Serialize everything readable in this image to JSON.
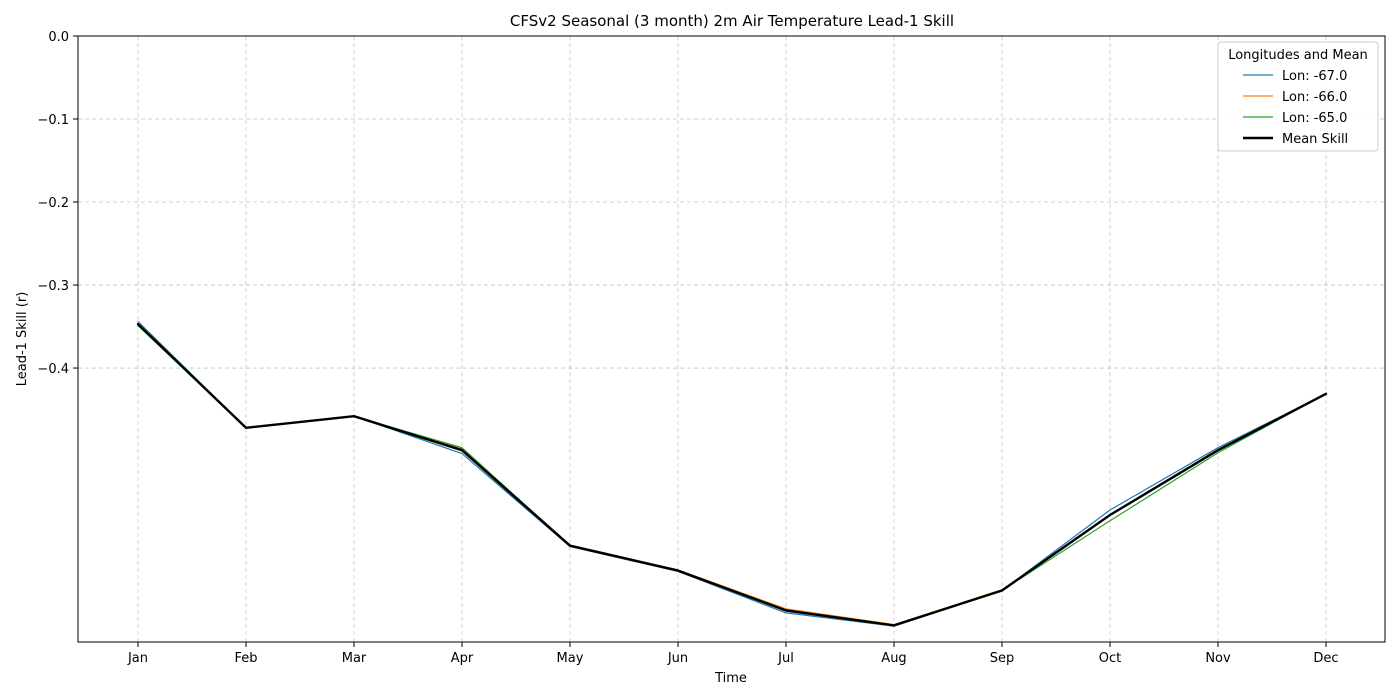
{
  "chart_data": {
    "type": "line",
    "title": "CFSv2 Seasonal (3 month) 2m Air Temperature Lead-1 Skill",
    "xlabel": "Time",
    "ylabel": "Lead-1 Skill (r)",
    "categories": [
      "Jan",
      "Feb",
      "Mar",
      "Apr",
      "May",
      "Jun",
      "Jul",
      "Aug",
      "Sep",
      "Oct",
      "Nov",
      "Dec"
    ],
    "ylim": [
      -0.73,
      0.0
    ],
    "yticks": [
      0.0,
      -0.1,
      -0.2,
      -0.3,
      -0.4
    ],
    "ytick_labels": [
      "0.0",
      "−0.1",
      "−0.2",
      "−0.3",
      "−0.4"
    ],
    "grid": true,
    "legend": {
      "title": "Longitudes and Mean",
      "placement": "top-right"
    },
    "series": [
      {
        "name": "Lon: -67.0",
        "color": "#1f77b4",
        "width": "thin",
        "values": [
          -0.344,
          -0.472,
          -0.458,
          -0.503,
          -0.615,
          -0.645,
          -0.695,
          -0.711,
          -0.668,
          -0.571,
          -0.496,
          -0.431
        ]
      },
      {
        "name": "Lon: -66.0",
        "color": "#ff7f0e",
        "width": "thin",
        "values": [
          -0.348,
          -0.472,
          -0.458,
          -0.497,
          -0.613,
          -0.643,
          -0.69,
          -0.709,
          -0.667,
          -0.577,
          -0.498,
          -0.431
        ]
      },
      {
        "name": "Lon: -65.0",
        "color": "#2ca02c",
        "width": "thin",
        "values": [
          -0.349,
          -0.472,
          -0.458,
          -0.496,
          -0.614,
          -0.644,
          -0.691,
          -0.71,
          -0.668,
          -0.584,
          -0.502,
          -0.431
        ]
      },
      {
        "name": "Mean Skill",
        "color": "#000000",
        "width": "thick",
        "values": [
          -0.347,
          -0.472,
          -0.458,
          -0.499,
          -0.614,
          -0.644,
          -0.692,
          -0.71,
          -0.668,
          -0.577,
          -0.499,
          -0.431
        ]
      }
    ]
  }
}
